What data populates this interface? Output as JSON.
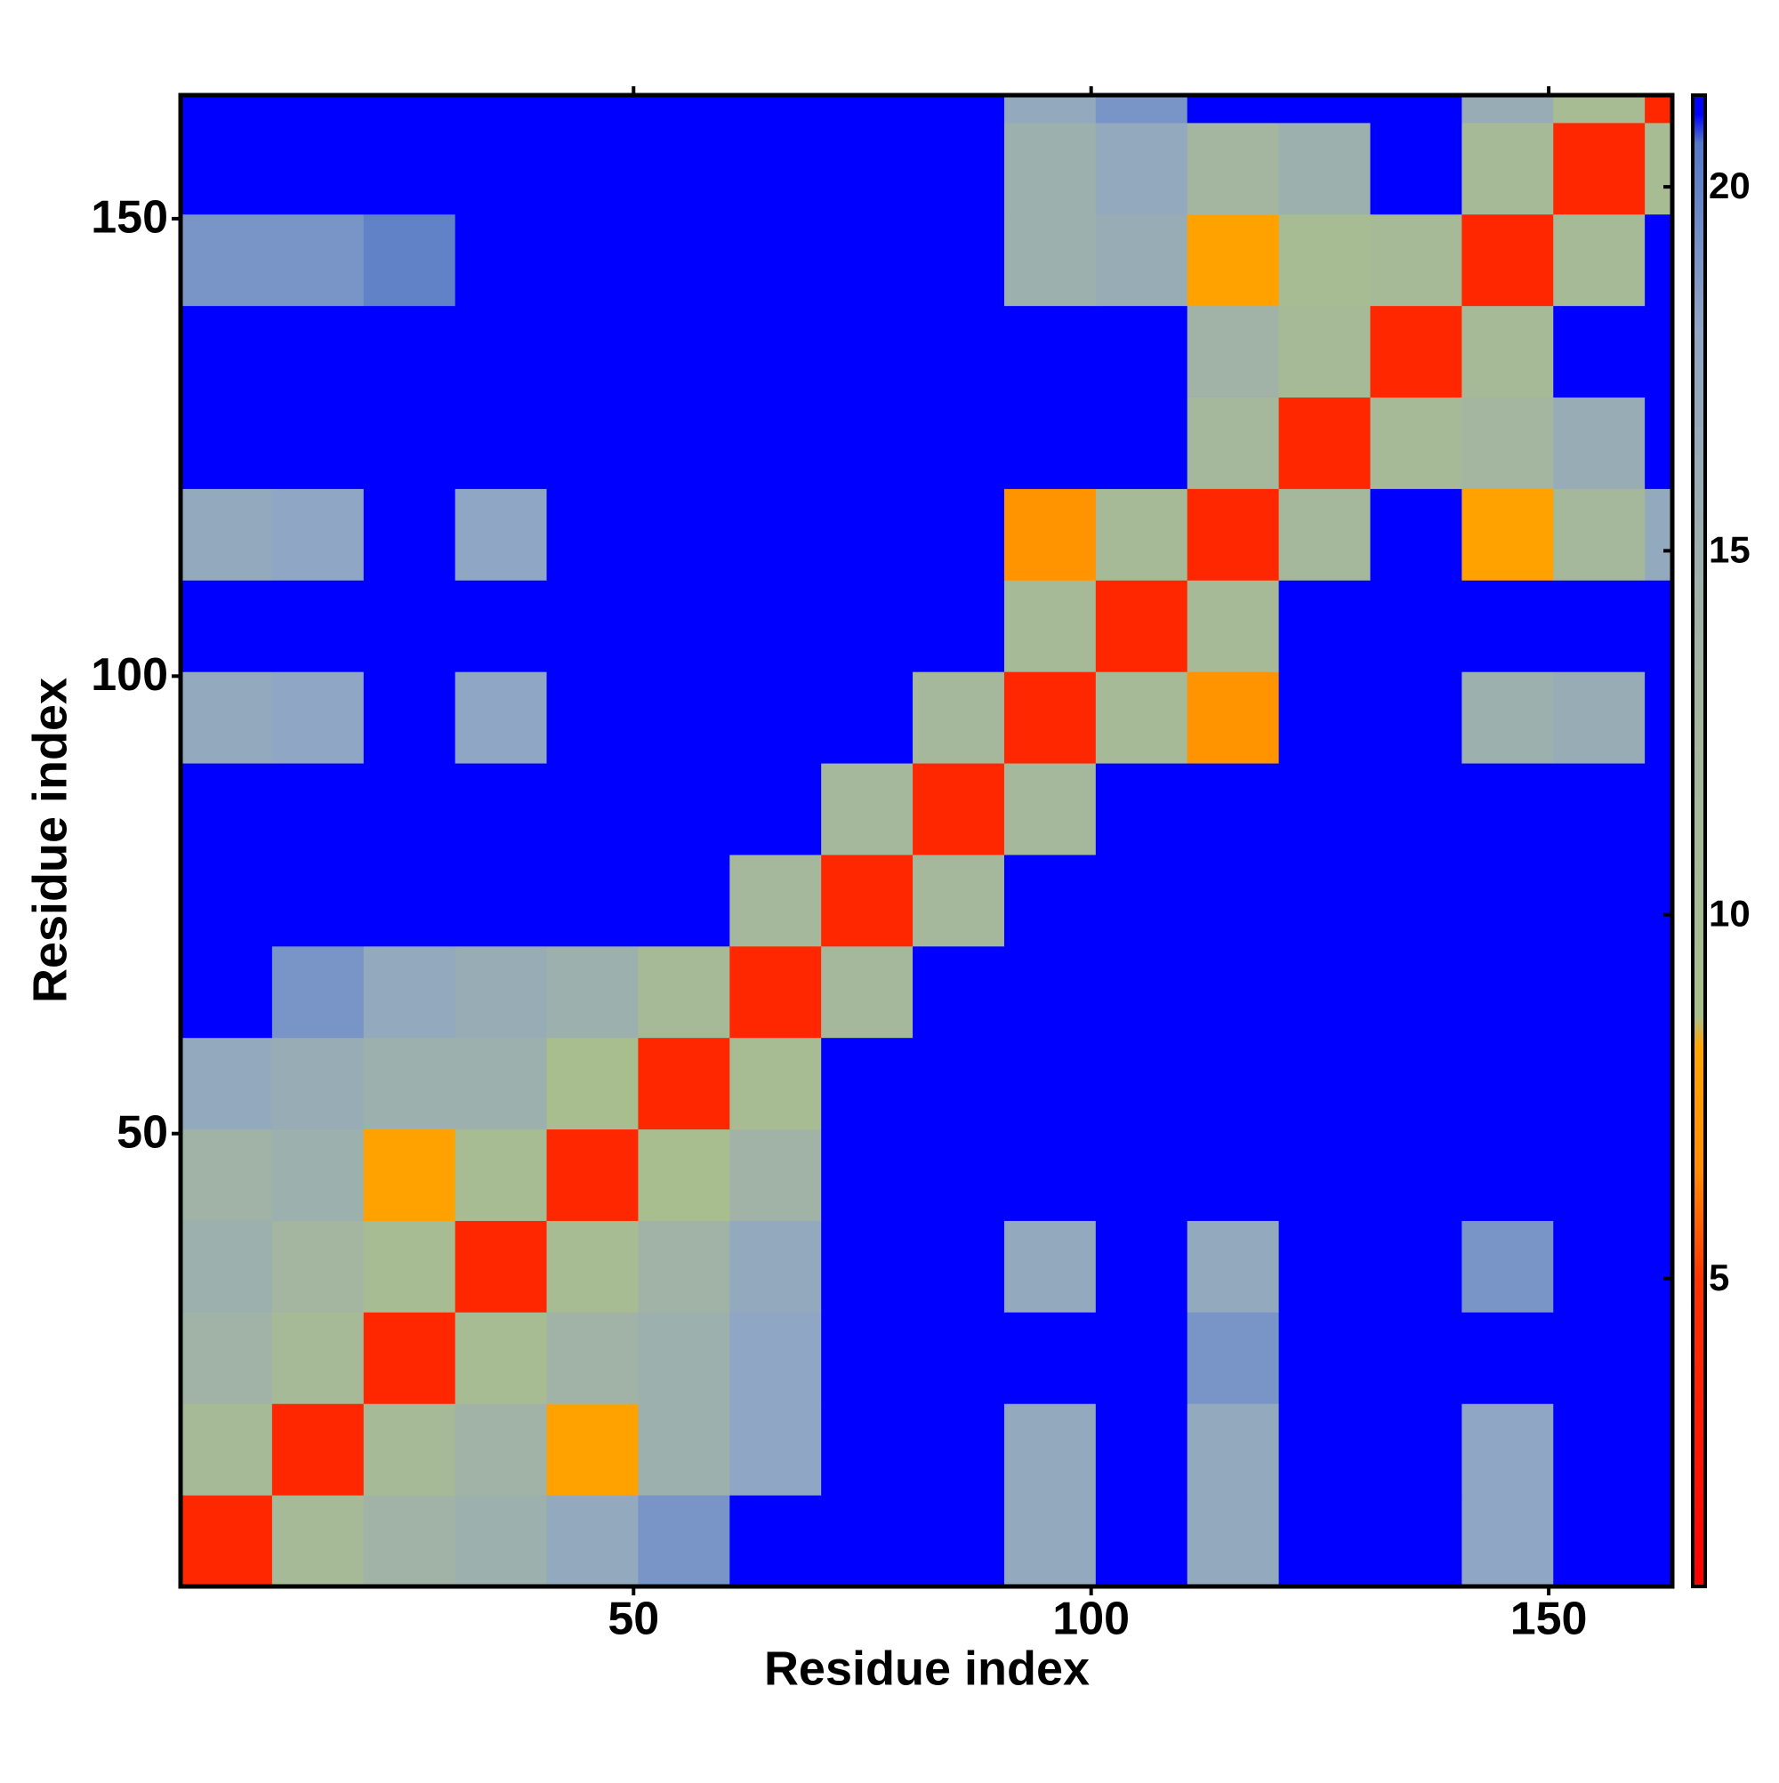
{
  "chart_data": {
    "type": "heatmap",
    "x_label": "Residue index",
    "y_label": "Residue index",
    "xlim": [
      0.5,
      163.5
    ],
    "xticks": [
      50,
      100,
      150
    ],
    "ylim": [
      0.5,
      163.5
    ],
    "yticks": [
      50,
      100,
      150
    ],
    "xbins": [
      0.5,
      10.5,
      20.5,
      30.5,
      40.5,
      50.5,
      60.5,
      70.5,
      80.5,
      90.5,
      100.5,
      110.5,
      120.5,
      130.5,
      140.5,
      150.5,
      160.5,
      163.5
    ],
    "ybins": [
      0.5,
      10.5,
      20.5,
      30.5,
      40.5,
      50.5,
      60.5,
      70.5,
      80.5,
      90.5,
      100.5,
      110.5,
      120.5,
      130.5,
      140.5,
      150.5,
      160.5,
      163.5
    ],
    "z": [
      [
        4,
        11,
        14,
        15,
        17,
        19,
        21,
        21,
        21,
        17,
        21,
        17,
        21,
        21,
        18,
        21,
        21
      ],
      [
        11,
        4,
        11,
        14,
        8,
        15,
        18,
        21,
        21,
        17,
        21,
        17,
        21,
        21,
        18,
        21,
        21
      ],
      [
        14,
        11,
        4,
        10,
        14,
        15,
        18,
        21,
        21,
        21,
        21,
        19,
        21,
        21,
        21,
        21,
        21
      ],
      [
        15,
        13,
        10,
        4,
        10,
        14,
        17,
        21,
        21,
        17,
        21,
        17,
        21,
        21,
        19,
        21,
        21
      ],
      [
        14,
        15,
        8,
        10,
        4,
        9,
        14,
        21,
        21,
        21,
        21,
        21,
        21,
        21,
        21,
        21,
        21
      ],
      [
        17,
        16,
        15,
        15,
        9,
        4,
        10,
        21,
        21,
        21,
        21,
        21,
        21,
        21,
        21,
        21,
        21
      ],
      [
        21,
        19,
        17,
        16,
        15,
        11,
        4,
        12,
        21,
        21,
        21,
        21,
        21,
        21,
        21,
        21,
        21
      ],
      [
        21,
        21,
        21,
        21,
        21,
        21,
        12,
        4,
        12,
        21,
        21,
        21,
        21,
        21,
        21,
        21,
        21
      ],
      [
        21,
        21,
        21,
        21,
        21,
        21,
        21,
        12,
        4,
        12,
        21,
        21,
        21,
        21,
        21,
        21,
        21
      ],
      [
        17,
        18,
        21,
        18,
        21,
        21,
        21,
        21,
        12,
        4,
        11,
        7,
        21,
        21,
        15,
        16,
        21
      ],
      [
        21,
        21,
        21,
        21,
        21,
        21,
        21,
        21,
        21,
        11,
        4,
        11,
        21,
        21,
        21,
        21,
        21
      ],
      [
        17,
        18,
        21,
        18,
        21,
        21,
        21,
        21,
        21,
        7,
        11,
        4,
        12,
        21,
        8,
        12,
        17
      ],
      [
        21,
        21,
        21,
        21,
        21,
        21,
        21,
        21,
        21,
        21,
        21,
        12,
        4,
        11,
        13,
        16,
        21
      ],
      [
        21,
        21,
        21,
        21,
        21,
        21,
        21,
        21,
        21,
        21,
        21,
        14,
        11,
        4,
        11,
        21,
        21
      ],
      [
        19,
        19,
        20,
        21,
        21,
        21,
        21,
        21,
        21,
        15,
        16,
        8,
        10,
        11,
        4,
        11,
        21
      ],
      [
        21,
        21,
        21,
        21,
        21,
        21,
        21,
        21,
        21,
        15,
        17,
        13,
        15,
        21,
        11,
        4,
        10
      ],
      [
        21,
        21,
        21,
        21,
        21,
        21,
        21,
        21,
        21,
        17,
        19,
        21,
        21,
        21,
        16,
        10,
        4
      ]
    ],
    "colorbar_lim": [
      0.77,
      21.26
    ],
    "colorbar_ticks": [
      5,
      10,
      15,
      20
    ],
    "colorscale": [
      {
        "value": 0.77,
        "color": "#ff0000"
      },
      {
        "value": 5,
        "color": "#ff3300"
      },
      {
        "value": 6.5,
        "color": "#ff8c00"
      },
      {
        "value": 8.2,
        "color": "#ffa500"
      },
      {
        "value": 8.6,
        "color": "#a8bf8c"
      },
      {
        "value": 13,
        "color": "#a5b6a0"
      },
      {
        "value": 18,
        "color": "#8fa6c4"
      },
      {
        "value": 20.6,
        "color": "#5577c8"
      },
      {
        "value": 21,
        "color": "#0000ff"
      }
    ]
  }
}
